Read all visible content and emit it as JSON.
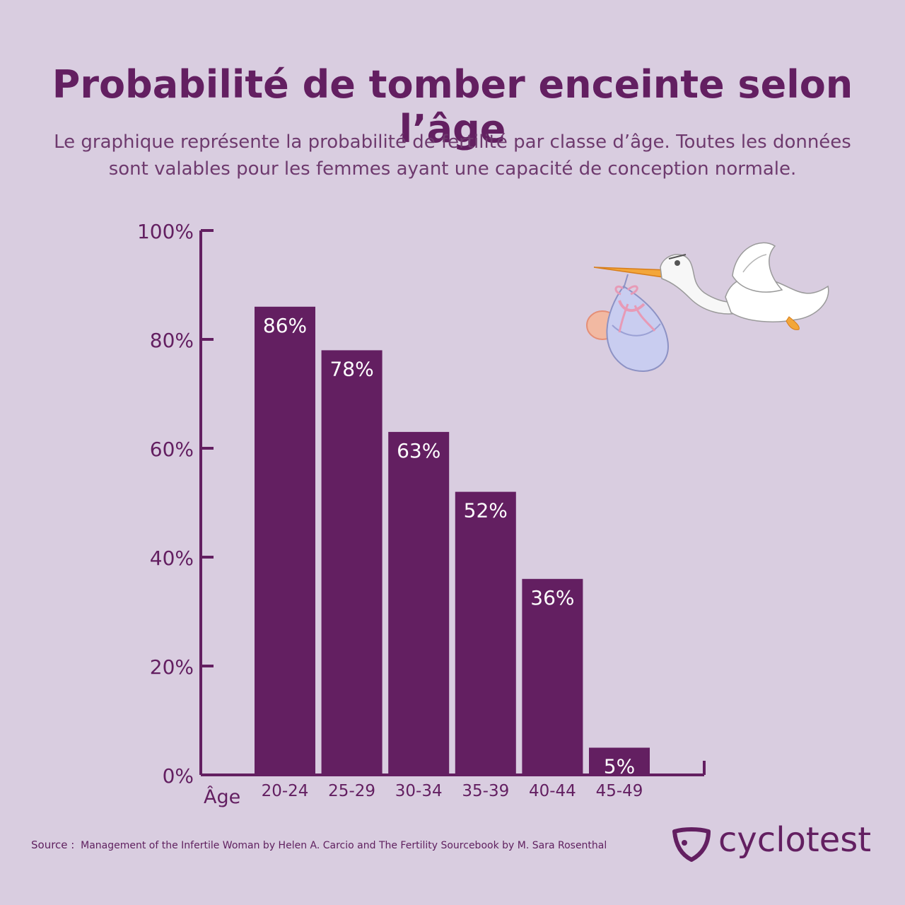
{
  "header": {
    "title": "Probabilité de tomber enceinte selon l’âge",
    "subtitle": "Le graphique représente la probabilité de fertilité par classe d’âge. Toutes les données sont valables pour les femmes ayant une capacité de conception normale."
  },
  "chart_data": {
    "type": "bar",
    "categories": [
      "20-24",
      "25-29",
      "30-34",
      "35-39",
      "40-44",
      "45-49"
    ],
    "values": [
      86,
      78,
      63,
      52,
      36,
      5
    ],
    "data_labels": [
      "86%",
      "78%",
      "63%",
      "52%",
      "36%",
      "5%"
    ],
    "xlabel": "Âge",
    "ylabel": "",
    "ylim": [
      0,
      100
    ],
    "yticks": [
      0,
      20,
      40,
      60,
      80,
      100
    ],
    "ytick_labels": [
      "0%",
      "20%",
      "40%",
      "60%",
      "80%",
      "100%"
    ],
    "bar_color": "#631f61",
    "label_color": "#ffffff",
    "grid": false
  },
  "footer": {
    "source_label": "Source :",
    "source_text": "Management of the Infertile Woman by Helen A. Carcio and The Fertility Sourcebook by M. Sara Rosenthal",
    "brand": "cyclotest"
  },
  "illustration": {
    "icon": "stork-carrying-baby-icon"
  },
  "colors": {
    "background": "#d9cde0",
    "accent": "#631f61"
  }
}
